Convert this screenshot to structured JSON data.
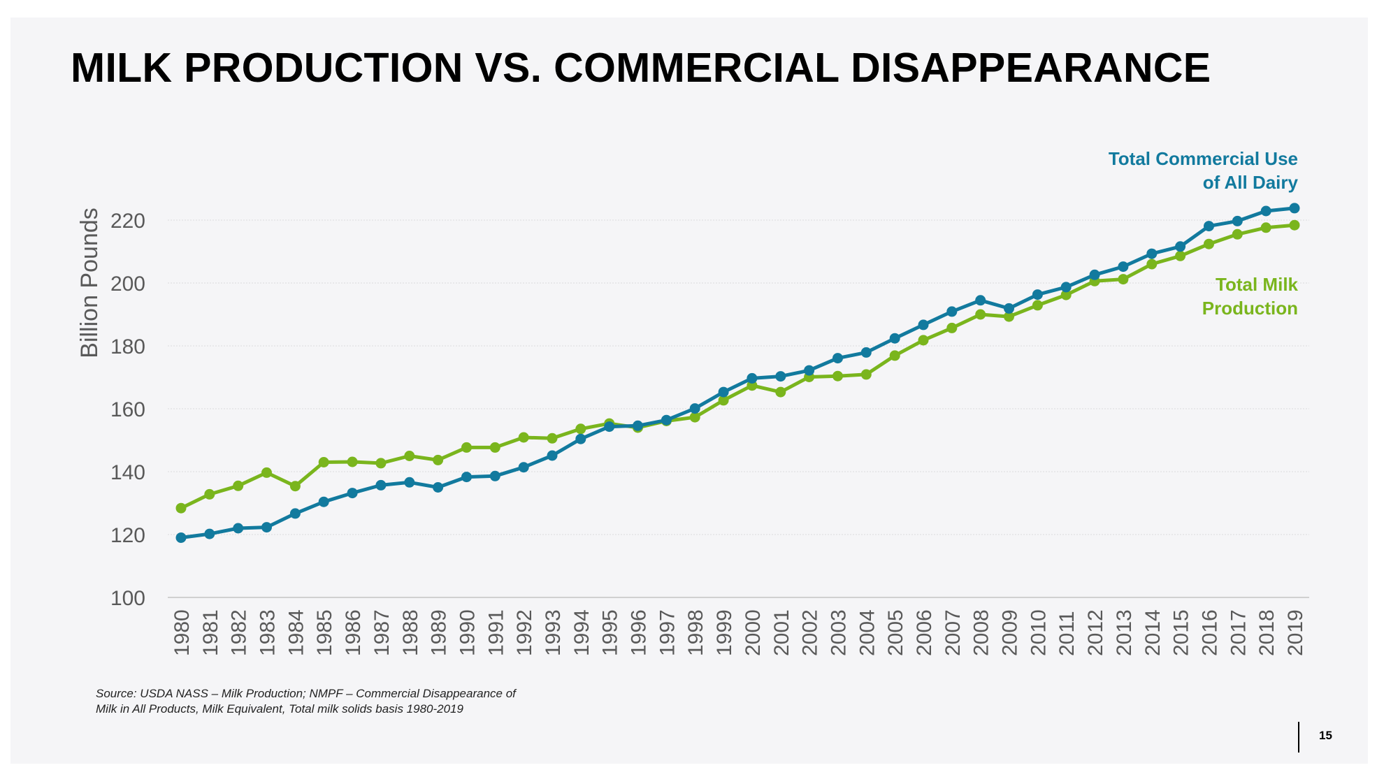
{
  "slide": {
    "title": "MILK PRODUCTION VS. COMMERCIAL DISAPPEARANCE",
    "source_line1": "Source: USDA NASS – Milk Production; NMPF – Commercial Disappearance of",
    "source_line2": "Milk in All Products, Milk Equivalent, Total milk solids basis 1980-2019",
    "page_number": "15"
  },
  "chart_data": {
    "type": "line",
    "title": "",
    "xlabel": "",
    "ylabel": "Billion Pounds",
    "ylim": [
      100,
      220
    ],
    "yticks": [
      100,
      120,
      140,
      160,
      180,
      200,
      220
    ],
    "grid": true,
    "categories": [
      "1980",
      "1981",
      "1982",
      "1983",
      "1984",
      "1985",
      "1986",
      "1987",
      "1988",
      "1989",
      "1990",
      "1991",
      "1992",
      "1993",
      "1994",
      "1995",
      "1996",
      "1997",
      "1998",
      "1999",
      "2000",
      "2001",
      "2002",
      "2003",
      "2004",
      "2005",
      "2006",
      "2007",
      "2008",
      "2009",
      "2010",
      "2011",
      "2012",
      "2013",
      "2014",
      "2015",
      "2016",
      "2017",
      "2018",
      "2019"
    ],
    "series": [
      {
        "name": "Total Milk Production",
        "label_lines": [
          "Total Milk",
          "Production"
        ],
        "color": "#7ab51d",
        "values": [
          128.4,
          132.8,
          135.5,
          139.7,
          135.4,
          143.0,
          143.1,
          142.7,
          145.0,
          143.7,
          147.7,
          147.7,
          150.9,
          150.6,
          153.6,
          155.3,
          154.0,
          156.1,
          157.3,
          162.7,
          167.4,
          165.3,
          170.1,
          170.4,
          170.9,
          176.9,
          181.8,
          185.7,
          190.0,
          189.3,
          192.9,
          196.2,
          200.6,
          201.2,
          206.0,
          208.6,
          212.4,
          215.5,
          217.6,
          218.4
        ]
      },
      {
        "name": "Total Commercial Use of All Dairy",
        "label_lines": [
          "Total Commercial Use",
          "of All Dairy"
        ],
        "color": "#127a9e",
        "values": [
          119.0,
          120.2,
          122.0,
          122.3,
          126.7,
          130.4,
          133.2,
          135.7,
          136.6,
          135.0,
          138.3,
          138.6,
          141.4,
          145.1,
          150.4,
          154.3,
          154.6,
          156.4,
          160.1,
          165.3,
          169.7,
          170.3,
          172.2,
          176.1,
          177.9,
          182.4,
          186.7,
          190.9,
          194.5,
          191.9,
          196.3,
          198.7,
          202.6,
          205.2,
          209.3,
          211.6,
          218.1,
          219.7,
          222.9,
          223.8
        ]
      }
    ]
  }
}
